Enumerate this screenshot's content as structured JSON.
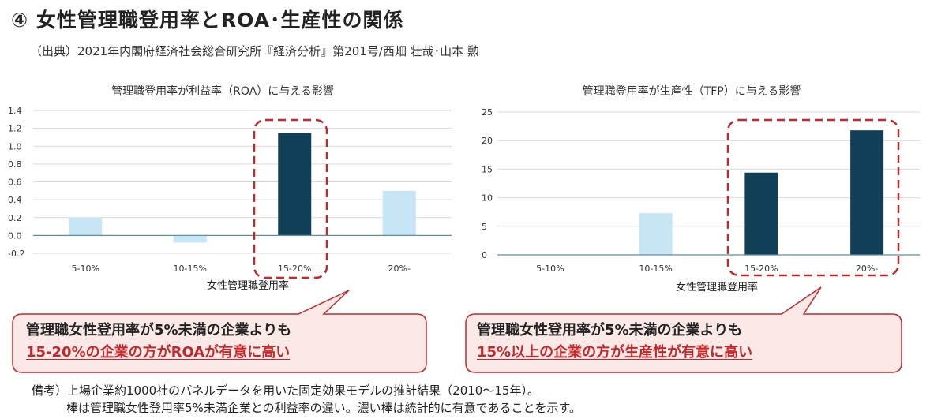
{
  "header": {
    "title": "④ 女性管理職登用率とROA･生産性の関係",
    "source": "（出典）2021年内閣府経済社会総合研究所『経済分析』第201号/西畑 壮哉･山本 勲"
  },
  "chart_data": [
    {
      "type": "bar",
      "title": "管理職登用率が利益率（ROA）に与える影響",
      "xlabel": "女性管理職登用率",
      "ylabel": "",
      "categories": [
        "5-10%",
        "10-15%",
        "15-20%",
        "20%-"
      ],
      "values": [
        0.2,
        -0.08,
        1.15,
        0.5
      ],
      "significant": [
        false,
        false,
        true,
        false
      ],
      "ylim": [
        -0.2,
        1.4
      ],
      "yticks": [
        "-0.2",
        "0.0",
        "0.2",
        "0.4",
        "0.6",
        "0.8",
        "1.0",
        "1.2",
        "1.4"
      ],
      "grid": true
    },
    {
      "type": "bar",
      "title": "管理職登用率が生産性（TFP）に与える影響",
      "xlabel": "女性管理職登用率",
      "ylabel": "",
      "categories": [
        "5-10%",
        "10-15%",
        "15-20%",
        "20%-"
      ],
      "values": [
        0,
        7.3,
        14.4,
        21.8
      ],
      "significant": [
        false,
        false,
        true,
        true
      ],
      "ylim": [
        0,
        25
      ],
      "yticks": [
        "0",
        "5",
        "10",
        "15",
        "20",
        "25"
      ],
      "grid": true
    }
  ],
  "callouts": [
    {
      "line1": "管理職女性登用率が5%未満の企業よりも",
      "line2": "15-20%の企業の方がROAが有意に高い"
    },
    {
      "line1": "管理職女性登用率が5%未満の企業よりも",
      "line2": "15%以上の企業の方が生産性が有意に高い"
    }
  ],
  "notes": {
    "line1": "備考）上場企業約1000社のパネルデータを用いた固定効果モデルの推計結果（2010～15年）。",
    "line2": "棒は管理職女性登用率5%未満企業との利益率の違い。濃い棒は統計的に有意であることを示す。"
  },
  "colors": {
    "light_bar": "#c6e6f5",
    "dark_bar": "#123f58",
    "gridline": "#d9d9d9",
    "axis": "#5a8fa8",
    "highlight": "#c0282b",
    "callout_fill": "#fbe9e7"
  }
}
